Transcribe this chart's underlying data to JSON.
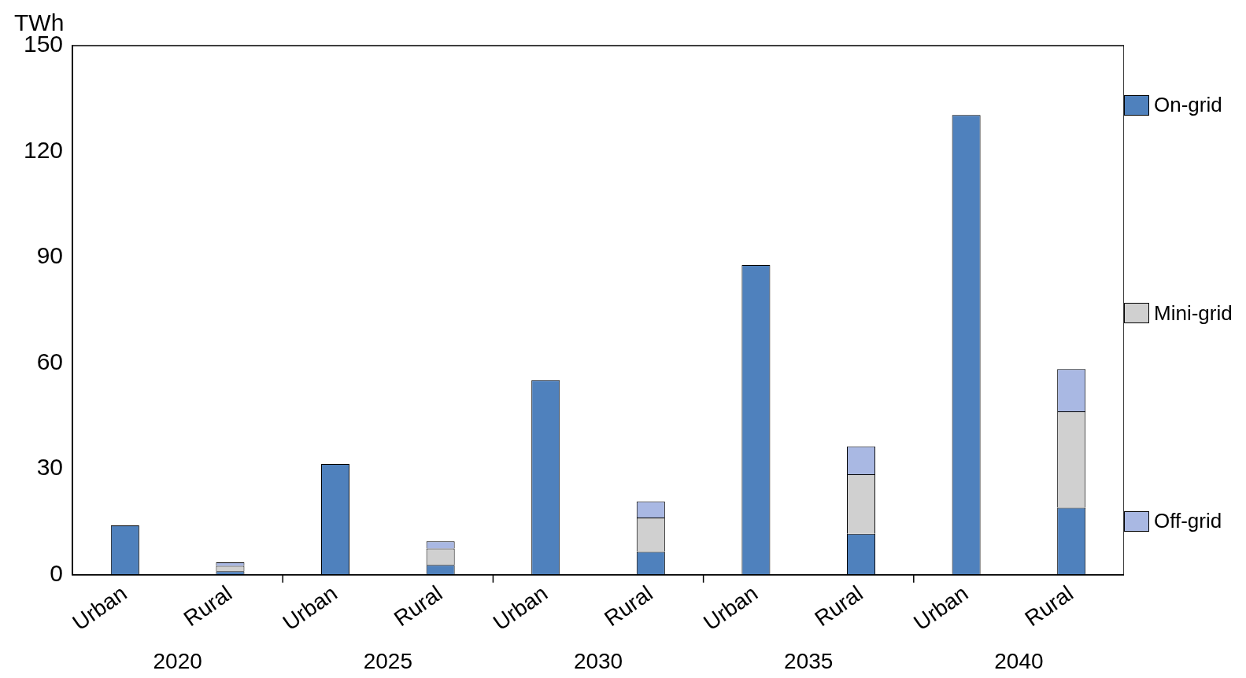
{
  "chart_data": {
    "type": "bar",
    "stacked": true,
    "ylabel": "TWh",
    "categories": [
      "Urban",
      "Rural",
      "Urban",
      "Rural",
      "Urban",
      "Rural",
      "Urban",
      "Rural",
      "Urban",
      "Rural"
    ],
    "series": [
      {
        "name": "On-grid",
        "color": "#4f81bd",
        "values": [
          14,
          1,
          31.4,
          2.8,
          55.2,
          6.5,
          87.8,
          11.6,
          130.3,
          19
        ]
      },
      {
        "name": "Mini-grid",
        "color": "#d0d0d0",
        "values": [
          0,
          1.5,
          0,
          4.6,
          0,
          9.7,
          0,
          16.9,
          0,
          27.3
        ]
      },
      {
        "name": "Off-grid",
        "color": "#a9b8e3",
        "values": [
          0,
          1,
          0,
          2.1,
          0,
          4.6,
          0,
          7.9,
          0,
          12
        ]
      }
    ],
    "annotations": [
      "2020",
      "2025",
      "2030",
      "2035",
      "2040"
    ],
    "ylim": [
      0,
      150
    ],
    "yticks": [
      0,
      30,
      60,
      90,
      120,
      150
    ],
    "grid": false,
    "legend": "right"
  }
}
